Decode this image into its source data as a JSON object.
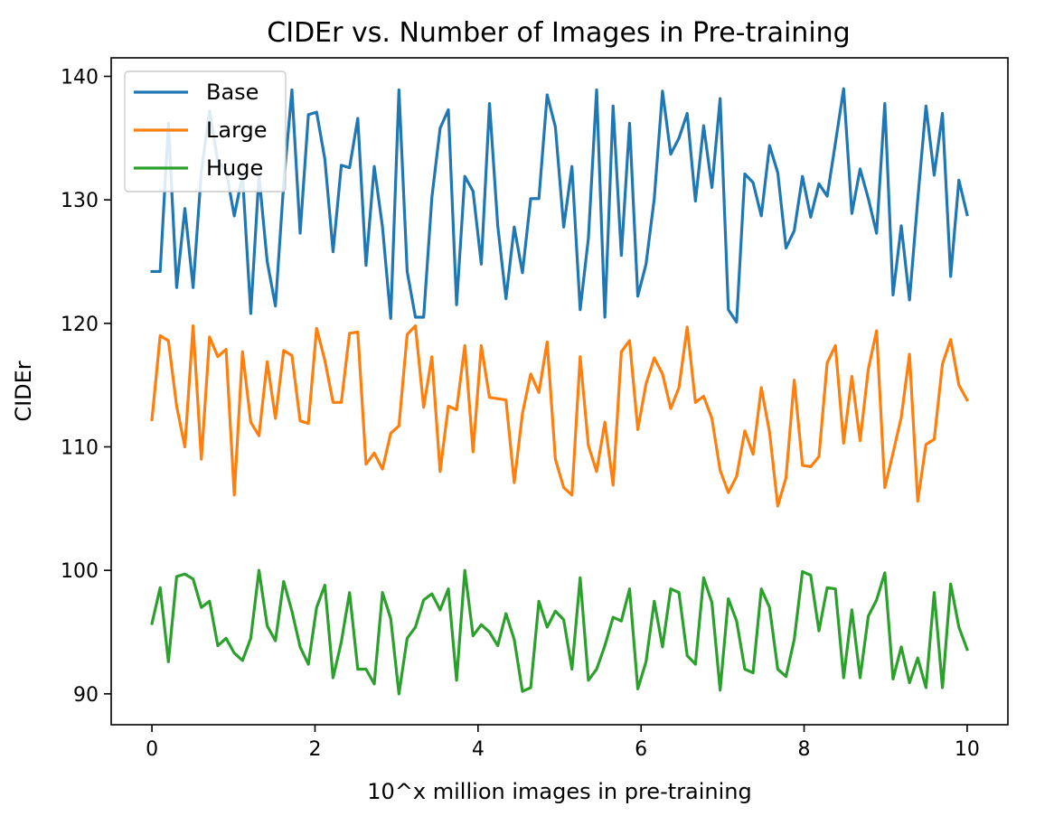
{
  "chart_data": {
    "type": "line",
    "title": "CIDEr vs. Number of Images in Pre-training",
    "xlabel": "10^x million images in pre-training",
    "ylabel": "CIDEr",
    "xlim": [
      -0.5,
      10.5
    ],
    "ylim": [
      87.5,
      141.5
    ],
    "xticks": [
      0,
      2,
      4,
      6,
      8,
      10
    ],
    "yticks": [
      90,
      100,
      110,
      120,
      130,
      140
    ],
    "grid": false,
    "legend": "top-left",
    "x": [
      0,
      0.101,
      0.202,
      0.303,
      0.404,
      0.505,
      0.606,
      0.707,
      0.808,
      0.909,
      1.01,
      1.111,
      1.212,
      1.313,
      1.414,
      1.515,
      1.616,
      1.717,
      1.818,
      1.919,
      2.02,
      2.121,
      2.222,
      2.323,
      2.424,
      2.525,
      2.626,
      2.727,
      2.828,
      2.929,
      3.03,
      3.131,
      3.232,
      3.333,
      3.434,
      3.535,
      3.636,
      3.737,
      3.838,
      3.939,
      4.04,
      4.141,
      4.242,
      4.343,
      4.444,
      4.545,
      4.646,
      4.747,
      4.848,
      4.949,
      5.051,
      5.152,
      5.253,
      5.354,
      5.455,
      5.556,
      5.657,
      5.758,
      5.859,
      5.96,
      6.061,
      6.162,
      6.263,
      6.364,
      6.465,
      6.566,
      6.667,
      6.768,
      6.869,
      6.97,
      7.071,
      7.172,
      7.273,
      7.374,
      7.475,
      7.576,
      7.677,
      7.778,
      7.879,
      7.98,
      8.081,
      8.182,
      8.283,
      8.384,
      8.485,
      8.586,
      8.687,
      8.788,
      8.889,
      8.99,
      9.091,
      9.192,
      9.293,
      9.394,
      9.495,
      9.596,
      9.697,
      9.798,
      9.899,
      10
    ],
    "series": [
      {
        "name": "Base",
        "color": "#1f77b4",
        "values": [
          124.2,
          124.2,
          136.2,
          122.9,
          129.3,
          122.9,
          132.3,
          137.2,
          133.1,
          132.4,
          128.7,
          132.0,
          120.8,
          132.0,
          125.0,
          121.4,
          131.3,
          138.9,
          127.3,
          136.9,
          137.1,
          133.3,
          125.8,
          132.8,
          132.6,
          136.6,
          124.7,
          132.7,
          127.8,
          120.4,
          138.9,
          124.2,
          120.5,
          120.5,
          130.2,
          135.8,
          137.3,
          121.5,
          131.9,
          130.7,
          124.8,
          137.8,
          127.9,
          122.0,
          127.8,
          124.1,
          130.1,
          130.1,
          138.5,
          135.9,
          127.8,
          132.7,
          121.1,
          126.9,
          138.9,
          120.5,
          137.6,
          125.5,
          136.2,
          122.2,
          124.8,
          130.1,
          138.8,
          133.7,
          135.0,
          137.0,
          129.9,
          136.0,
          131.0,
          138.2,
          121.1,
          120.1,
          132.1,
          131.4,
          128.7,
          134.4,
          132.2,
          126.1,
          127.5,
          131.9,
          128.6,
          131.3,
          130.3,
          134.6,
          139.0,
          128.9,
          132.5,
          130.1,
          127.3,
          137.8,
          122.3,
          127.9,
          121.9,
          130.0,
          137.6,
          132.0,
          137.0,
          123.8,
          131.6,
          128.8
        ]
      },
      {
        "name": "Large",
        "color": "#ff7f0e",
        "values": [
          112.2,
          119.0,
          118.6,
          113.3,
          110.0,
          119.8,
          109.0,
          118.9,
          117.3,
          117.9,
          106.1,
          117.7,
          112.0,
          110.9,
          116.9,
          112.3,
          117.8,
          117.4,
          112.1,
          111.9,
          119.6,
          117.0,
          113.6,
          113.6,
          119.2,
          119.3,
          108.6,
          109.5,
          108.2,
          111.1,
          111.7,
          119.1,
          119.8,
          113.2,
          117.3,
          108.0,
          113.3,
          113.0,
          118.2,
          109.6,
          118.2,
          114.0,
          113.9,
          113.8,
          107.1,
          112.7,
          115.9,
          114.4,
          118.5,
          109.0,
          106.7,
          106.1,
          117.3,
          110.1,
          108.0,
          112.0,
          106.9,
          117.7,
          118.6,
          111.4,
          115.1,
          117.2,
          115.9,
          113.1,
          114.8,
          119.7,
          113.6,
          114.1,
          112.3,
          108.1,
          106.3,
          107.6,
          111.3,
          109.4,
          114.8,
          111.2,
          105.2,
          107.5,
          115.4,
          108.5,
          108.4,
          109.2,
          116.8,
          118.2,
          110.3,
          115.7,
          110.5,
          116.3,
          119.4,
          106.7,
          109.5,
          112.4,
          117.5,
          105.6,
          110.2,
          110.6,
          116.7,
          118.7,
          115.0,
          113.8
        ]
      },
      {
        "name": "Huge",
        "color": "#2ca02c",
        "values": [
          95.7,
          98.6,
          92.6,
          99.5,
          99.7,
          99.3,
          97.0,
          97.5,
          93.9,
          94.5,
          93.3,
          92.7,
          94.5,
          100.0,
          95.5,
          94.3,
          99.1,
          96.7,
          93.8,
          92.4,
          97.0,
          98.8,
          91.3,
          94.2,
          98.2,
          92.0,
          92.0,
          90.8,
          98.2,
          96.1,
          90.0,
          94.5,
          95.4,
          97.6,
          98.1,
          96.8,
          98.5,
          91.1,
          100.0,
          94.7,
          95.6,
          95.0,
          93.9,
          96.5,
          94.4,
          90.2,
          90.5,
          97.5,
          95.4,
          96.7,
          96.0,
          92.0,
          99.4,
          91.1,
          92.0,
          93.9,
          96.2,
          95.9,
          98.5,
          90.4,
          92.6,
          97.5,
          93.8,
          98.5,
          98.2,
          93.1,
          92.4,
          99.4,
          97.4,
          90.3,
          97.7,
          95.9,
          92.0,
          91.7,
          98.5,
          97.0,
          92.0,
          91.4,
          94.4,
          99.9,
          99.6,
          95.1,
          98.6,
          98.5,
          91.3,
          96.8,
          91.3,
          96.3,
          97.6,
          99.8,
          91.2,
          93.8,
          90.9,
          92.9,
          90.5,
          98.2,
          90.5,
          98.9,
          95.4,
          93.6
        ]
      }
    ]
  }
}
